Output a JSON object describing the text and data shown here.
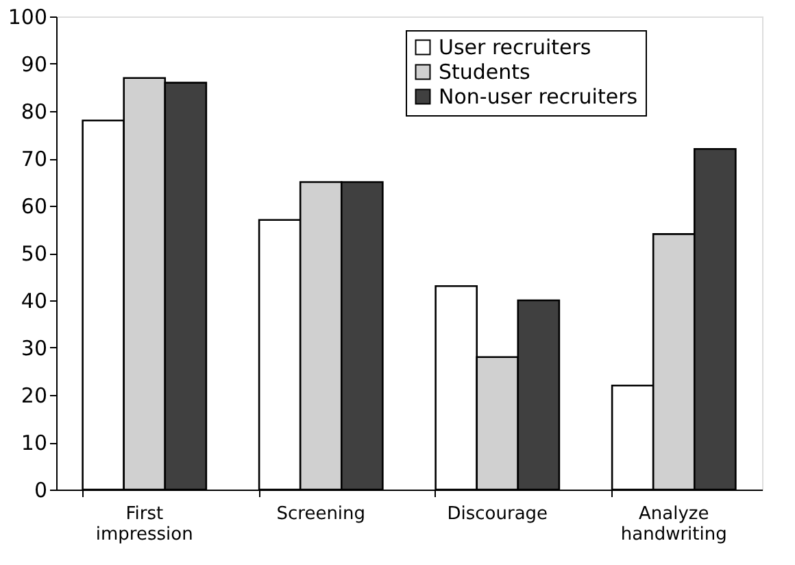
{
  "chart_data": {
    "type": "bar",
    "categories": [
      "First impression",
      "Screening",
      "Discourage",
      "Analyze handwriting"
    ],
    "series": [
      {
        "name": "User recruiters",
        "color": "#ffffff",
        "values": [
          78,
          57,
          43,
          22
        ]
      },
      {
        "name": "Students",
        "color": "#d0d0d0",
        "values": [
          87,
          65,
          28,
          54
        ]
      },
      {
        "name": "Non-user recruiters",
        "color": "#404040",
        "values": [
          86,
          65,
          40,
          72
        ]
      }
    ],
    "ylim": [
      0,
      100
    ],
    "yticks": [
      0,
      10,
      20,
      30,
      40,
      50,
      60,
      70,
      80,
      90,
      100
    ],
    "legend": "top",
    "grid": false
  }
}
